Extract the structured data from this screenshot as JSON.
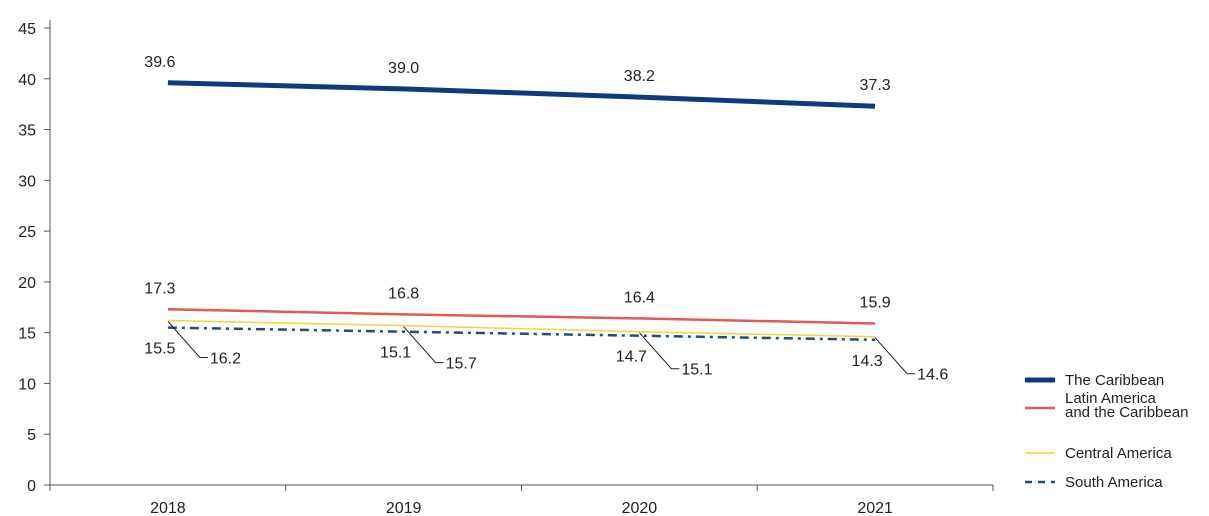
{
  "chart_data": {
    "type": "line",
    "title": "",
    "xlabel": "",
    "ylabel": "",
    "categories": [
      "2018",
      "2019",
      "2020",
      "2021"
    ],
    "ylim": [
      0,
      45
    ],
    "yticks": [
      0,
      5,
      10,
      15,
      20,
      25,
      30,
      35,
      40,
      45
    ],
    "grid": false,
    "legend_position": "right-bottom",
    "series": [
      {
        "name": "The Caribbean",
        "values": [
          39.6,
          39.0,
          38.2,
          37.3
        ],
        "labels": [
          "39.6",
          "39.0",
          "38.2",
          "37.3"
        ],
        "color": "#0f3b7d",
        "style": "solid-thick"
      },
      {
        "name": "Latin America and the Caribbean",
        "values": [
          17.3,
          16.8,
          16.4,
          15.9
        ],
        "labels": [
          "17.3",
          "16.8",
          "16.4",
          "15.9"
        ],
        "color": "#e25a57",
        "style": "solid"
      },
      {
        "name": "Central America",
        "values": [
          16.2,
          15.7,
          15.1,
          14.6
        ],
        "labels": [
          "16.2",
          "15.7",
          "15.1",
          "14.6"
        ],
        "color": "#f2d43c",
        "style": "solid-thin"
      },
      {
        "name": "South America",
        "values": [
          15.5,
          15.1,
          14.7,
          14.3
        ],
        "labels": [
          "15.5",
          "15.1",
          "14.7",
          "14.3"
        ],
        "color": "#1d4f7a",
        "style": "dash-dot"
      }
    ]
  }
}
